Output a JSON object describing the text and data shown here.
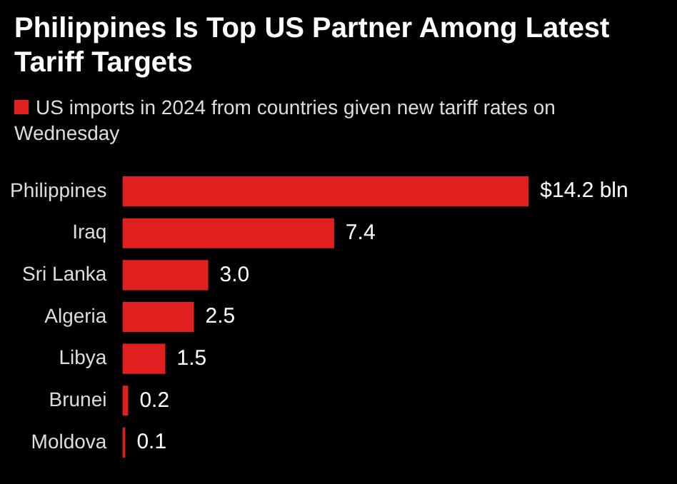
{
  "chart_data": {
    "type": "bar",
    "orientation": "horizontal",
    "title": "Philippines Is Top US Partner Among Latest Tariff Targets",
    "categories": [
      "Philippines",
      "Iraq",
      "Sri Lanka",
      "Algeria",
      "Libya",
      "Brunei",
      "Moldova"
    ],
    "series": [
      {
        "name": "US imports in 2024 from countries given new tariff rates on Wednesday",
        "color": "#e0201f",
        "values": [
          14.2,
          7.4,
          3.0,
          2.5,
          1.5,
          0.2,
          0.1
        ],
        "value_labels": [
          "$14.2 bln",
          "7.4",
          "3.0",
          "2.5",
          "1.5",
          "0.2",
          "0.1"
        ]
      }
    ],
    "legend": "top left"
  }
}
